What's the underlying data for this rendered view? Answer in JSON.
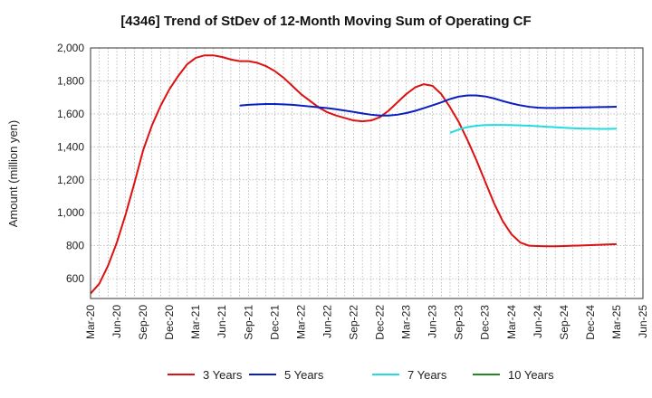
{
  "chart_data": {
    "type": "line",
    "title": "[4346]  Trend of StDev of 12-Month Moving Sum of Operating CF",
    "xlabel": "",
    "ylabel": "Amount (million yen)",
    "ylim": [
      480,
      2000
    ],
    "yticks": [
      600,
      800,
      1000,
      1200,
      1400,
      1600,
      1800,
      2000
    ],
    "ytick_labels": [
      "600",
      "800",
      "1,000",
      "1,200",
      "1,400",
      "1,600",
      "1,800",
      "2,000"
    ],
    "xlim": [
      "Mar-20",
      "Jun-25"
    ],
    "x_tick_labels": [
      "Mar-20",
      "Jun-20",
      "Sep-20",
      "Dec-20",
      "Mar-21",
      "Jun-21",
      "Sep-21",
      "Dec-21",
      "Mar-22",
      "Jun-22",
      "Sep-22",
      "Dec-22",
      "Mar-23",
      "Jun-23",
      "Sep-23",
      "Dec-23",
      "Mar-24",
      "Jun-24",
      "Sep-24",
      "Dec-24",
      "Mar-25",
      "Jun-25"
    ],
    "grid": true,
    "legend_position": "bottom",
    "series": [
      {
        "name": "3 Years",
        "color": "#dd1111",
        "x": [
          "Mar-20",
          "Apr-20",
          "May-20",
          "Jun-20",
          "Jul-20",
          "Aug-20",
          "Sep-20",
          "Oct-20",
          "Nov-20",
          "Dec-20",
          "Jan-21",
          "Feb-21",
          "Mar-21",
          "Apr-21",
          "May-21",
          "Jun-21",
          "Jul-21",
          "Aug-21",
          "Sep-21",
          "Oct-21",
          "Nov-21",
          "Dec-21",
          "Jan-22",
          "Feb-22",
          "Mar-22",
          "Apr-22",
          "May-22",
          "Jun-22",
          "Jul-22",
          "Aug-22",
          "Sep-22",
          "Oct-22",
          "Nov-22",
          "Dec-22",
          "Jan-23",
          "Feb-23",
          "Mar-23",
          "Apr-23",
          "May-23",
          "Jun-23",
          "Jul-23",
          "Aug-23",
          "Sep-23",
          "Oct-23",
          "Nov-23",
          "Dec-23",
          "Jan-24",
          "Feb-24",
          "Mar-24",
          "Apr-24",
          "May-24",
          "Jun-24",
          "Jul-24",
          "Aug-24",
          "Sep-24",
          "Oct-24",
          "Nov-24",
          "Dec-24",
          "Jan-25",
          "Feb-25",
          "Mar-25"
        ],
        "values": [
          510,
          570,
          680,
          820,
          990,
          1180,
          1380,
          1530,
          1650,
          1750,
          1830,
          1900,
          1940,
          1955,
          1955,
          1945,
          1930,
          1920,
          1920,
          1910,
          1890,
          1860,
          1820,
          1770,
          1720,
          1680,
          1640,
          1610,
          1590,
          1575,
          1560,
          1555,
          1560,
          1580,
          1620,
          1670,
          1720,
          1760,
          1780,
          1770,
          1720,
          1640,
          1550,
          1440,
          1320,
          1190,
          1060,
          950,
          870,
          820,
          800,
          798,
          797,
          797,
          798,
          800,
          802,
          804,
          806,
          808,
          810
        ]
      },
      {
        "name": "5 Years",
        "color": "#0a1fbf",
        "x": [
          "Aug-21",
          "Sep-21",
          "Oct-21",
          "Nov-21",
          "Dec-21",
          "Jan-22",
          "Feb-22",
          "Mar-22",
          "Apr-22",
          "May-22",
          "Jun-22",
          "Jul-22",
          "Aug-22",
          "Sep-22",
          "Oct-22",
          "Nov-22",
          "Dec-22",
          "Jan-23",
          "Feb-23",
          "Mar-23",
          "Apr-23",
          "May-23",
          "Jun-23",
          "Jul-23",
          "Aug-23",
          "Sep-23",
          "Oct-23",
          "Nov-23",
          "Dec-23",
          "Jan-24",
          "Feb-24",
          "Mar-24",
          "Apr-24",
          "May-24",
          "Jun-24",
          "Jul-24",
          "Aug-24",
          "Sep-24",
          "Oct-24",
          "Nov-24",
          "Dec-24",
          "Jan-25",
          "Feb-25",
          "Mar-25"
        ],
        "values": [
          1650,
          1655,
          1658,
          1660,
          1660,
          1658,
          1655,
          1650,
          1645,
          1640,
          1635,
          1628,
          1620,
          1612,
          1603,
          1595,
          1590,
          1590,
          1595,
          1605,
          1618,
          1635,
          1652,
          1670,
          1690,
          1705,
          1712,
          1712,
          1706,
          1694,
          1678,
          1664,
          1652,
          1643,
          1638,
          1636,
          1636,
          1637,
          1638,
          1639,
          1640,
          1641,
          1642,
          1643
        ]
      },
      {
        "name": "7 Years",
        "color": "#22dddd",
        "x": [
          "Aug-23",
          "Sep-23",
          "Oct-23",
          "Nov-23",
          "Dec-23",
          "Jan-24",
          "Feb-24",
          "Mar-24",
          "Apr-24",
          "May-24",
          "Jun-24",
          "Jul-24",
          "Aug-24",
          "Sep-24",
          "Oct-24",
          "Nov-24",
          "Dec-24",
          "Jan-25",
          "Feb-25",
          "Mar-25"
        ],
        "values": [
          1485,
          1505,
          1520,
          1528,
          1532,
          1533,
          1533,
          1532,
          1530,
          1528,
          1525,
          1522,
          1519,
          1516,
          1513,
          1511,
          1510,
          1509,
          1509,
          1510
        ]
      },
      {
        "name": "10 Years",
        "color": "#228822",
        "x": [],
        "values": []
      }
    ]
  }
}
